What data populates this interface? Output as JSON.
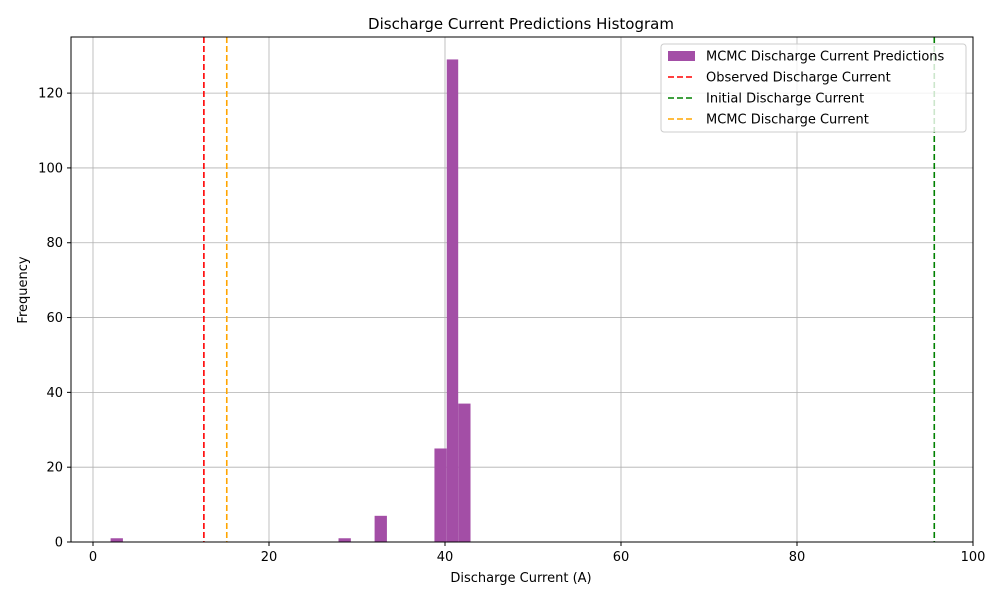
{
  "chart_data": {
    "type": "bar",
    "title": "Discharge Current Predictions Histogram",
    "xlabel": "Discharge Current (A)",
    "ylabel": "Frequency",
    "xlim": [
      -2.5,
      100
    ],
    "ylim": [
      0,
      135
    ],
    "x_ticks": [
      0,
      20,
      40,
      60,
      80,
      100
    ],
    "y_ticks": [
      0,
      20,
      40,
      60,
      80,
      100,
      120
    ],
    "grid": true,
    "legend_position": "top-right",
    "histogram": {
      "name": "MCMC Discharge Current Predictions",
      "color": "#a34ea6",
      "bins": [
        {
          "start": 2.0,
          "end": 3.4,
          "count": 1
        },
        {
          "start": 27.9,
          "end": 29.3,
          "count": 1
        },
        {
          "start": 32.0,
          "end": 33.4,
          "count": 7
        },
        {
          "start": 38.8,
          "end": 40.2,
          "count": 25
        },
        {
          "start": 40.2,
          "end": 41.5,
          "count": 129
        },
        {
          "start": 41.5,
          "end": 42.9,
          "count": 37
        }
      ]
    },
    "vlines": [
      {
        "name": "Observed Discharge Current",
        "x": 12.6,
        "color": "#ff0000"
      },
      {
        "name": "Initial Discharge Current",
        "x": 95.6,
        "color": "#008000"
      },
      {
        "name": "MCMC Discharge Current",
        "x": 15.2,
        "color": "#ffa500"
      }
    ]
  }
}
